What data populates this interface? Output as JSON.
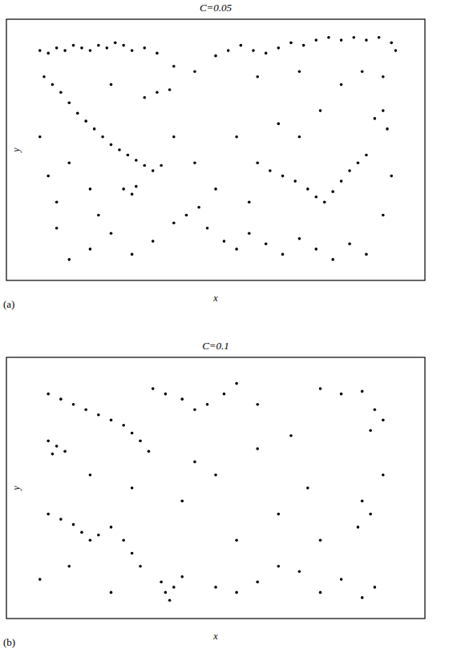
{
  "chart_data": [
    {
      "type": "scatter",
      "title": "C=0.05",
      "panel_label": "(a)",
      "x_label": "x",
      "y_label": "y",
      "xlim": [
        0,
        1
      ],
      "ylim": [
        0,
        1
      ],
      "xticks": [],
      "yticks": [],
      "tick_labels": false,
      "color": "#000000",
      "marker": "dot",
      "x": [
        0.08,
        0.1,
        0.12,
        0.14,
        0.16,
        0.18,
        0.2,
        0.22,
        0.24,
        0.26,
        0.28,
        0.3,
        0.33,
        0.36,
        0.5,
        0.53,
        0.56,
        0.59,
        0.62,
        0.65,
        0.68,
        0.71,
        0.74,
        0.77,
        0.8,
        0.83,
        0.86,
        0.89,
        0.92,
        0.93,
        0.09,
        0.11,
        0.13,
        0.15,
        0.17,
        0.19,
        0.21,
        0.23,
        0.25,
        0.27,
        0.29,
        0.31,
        0.33,
        0.35,
        0.37,
        0.28,
        0.3,
        0.31,
        0.33,
        0.36,
        0.39,
        0.6,
        0.63,
        0.66,
        0.69,
        0.72,
        0.74,
        0.76,
        0.78,
        0.8,
        0.82,
        0.84,
        0.86,
        0.88,
        0.9,
        0.91,
        0.4,
        0.43,
        0.46,
        0.48,
        0.52,
        0.55,
        0.58,
        0.62,
        0.66,
        0.7,
        0.74,
        0.78,
        0.82,
        0.86,
        0.2,
        0.25,
        0.3,
        0.35,
        0.12,
        0.15,
        0.1,
        0.12,
        0.08,
        0.2,
        0.22,
        0.4,
        0.45,
        0.5,
        0.55,
        0.58,
        0.65,
        0.7,
        0.75,
        0.8,
        0.85,
        0.9,
        0.92,
        0.9,
        0.45,
        0.4,
        0.6,
        0.7,
        0.15,
        0.25
      ],
      "values": [
        0.88,
        0.87,
        0.89,
        0.88,
        0.9,
        0.89,
        0.88,
        0.9,
        0.89,
        0.91,
        0.9,
        0.88,
        0.89,
        0.87,
        0.86,
        0.88,
        0.9,
        0.88,
        0.87,
        0.89,
        0.91,
        0.9,
        0.92,
        0.93,
        0.92,
        0.93,
        0.92,
        0.93,
        0.91,
        0.88,
        0.78,
        0.75,
        0.72,
        0.68,
        0.64,
        0.61,
        0.58,
        0.55,
        0.52,
        0.5,
        0.48,
        0.46,
        0.44,
        0.42,
        0.44,
        0.35,
        0.33,
        0.36,
        0.7,
        0.72,
        0.73,
        0.45,
        0.42,
        0.4,
        0.38,
        0.35,
        0.32,
        0.3,
        0.34,
        0.38,
        0.42,
        0.45,
        0.48,
        0.62,
        0.65,
        0.58,
        0.22,
        0.25,
        0.28,
        0.2,
        0.15,
        0.12,
        0.18,
        0.14,
        0.1,
        0.16,
        0.12,
        0.08,
        0.14,
        0.1,
        0.12,
        0.18,
        0.1,
        0.15,
        0.2,
        0.08,
        0.4,
        0.3,
        0.55,
        0.35,
        0.25,
        0.55,
        0.45,
        0.35,
        0.55,
        0.3,
        0.6,
        0.55,
        0.65,
        0.75,
        0.8,
        0.78,
        0.4,
        0.25,
        0.8,
        0.82,
        0.78,
        0.8,
        0.45,
        0.75
      ]
    },
    {
      "type": "scatter",
      "title": "C=0.1",
      "panel_label": "(b)",
      "x_label": "x",
      "y_label": "y",
      "xlim": [
        0,
        1
      ],
      "ylim": [
        0,
        1
      ],
      "xticks": [],
      "yticks": [],
      "tick_labels": false,
      "color": "#000000",
      "marker": "dot",
      "x": [
        0.1,
        0.13,
        0.16,
        0.19,
        0.22,
        0.25,
        0.28,
        0.3,
        0.32,
        0.34,
        0.1,
        0.12,
        0.14,
        0.11,
        0.35,
        0.38,
        0.42,
        0.45,
        0.48,
        0.52,
        0.55,
        0.75,
        0.8,
        0.85,
        0.88,
        0.9,
        0.87,
        0.1,
        0.13,
        0.16,
        0.18,
        0.2,
        0.22,
        0.25,
        0.28,
        0.3,
        0.32,
        0.37,
        0.38,
        0.39,
        0.4,
        0.42,
        0.5,
        0.55,
        0.6,
        0.65,
        0.7,
        0.75,
        0.8,
        0.85,
        0.88,
        0.85,
        0.87,
        0.84,
        0.9,
        0.75,
        0.72,
        0.45,
        0.5,
        0.42,
        0.3,
        0.2,
        0.6,
        0.65,
        0.55,
        0.15,
        0.25,
        0.08,
        0.6,
        0.68
      ],
      "values": [
        0.86,
        0.84,
        0.82,
        0.8,
        0.78,
        0.76,
        0.74,
        0.71,
        0.68,
        0.64,
        0.68,
        0.66,
        0.64,
        0.63,
        0.88,
        0.86,
        0.84,
        0.8,
        0.82,
        0.86,
        0.9,
        0.88,
        0.86,
        0.87,
        0.8,
        0.76,
        0.72,
        0.4,
        0.38,
        0.36,
        0.33,
        0.3,
        0.32,
        0.35,
        0.3,
        0.25,
        0.2,
        0.14,
        0.1,
        0.07,
        0.12,
        0.16,
        0.12,
        0.1,
        0.14,
        0.2,
        0.18,
        0.1,
        0.15,
        0.08,
        0.12,
        0.45,
        0.4,
        0.35,
        0.55,
        0.3,
        0.5,
        0.6,
        0.55,
        0.45,
        0.5,
        0.55,
        0.65,
        0.4,
        0.3,
        0.2,
        0.1,
        0.15,
        0.82,
        0.7
      ]
    }
  ]
}
